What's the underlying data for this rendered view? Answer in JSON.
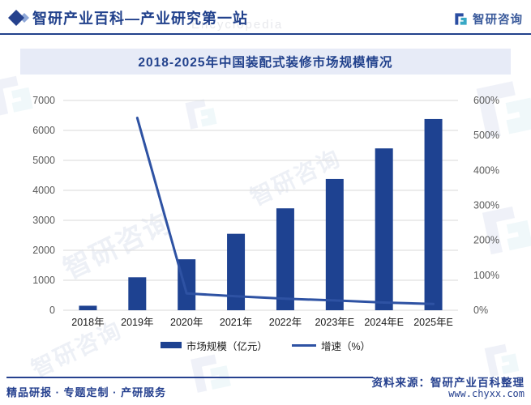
{
  "header": {
    "title": "智研产业百科—产业研究第一站",
    "logo_text": "智研咨询"
  },
  "chart_data": {
    "type": "bar",
    "title": "2018-2025年中国装配式装修市场规模情况",
    "categories": [
      "2018年",
      "2019年",
      "2020年",
      "2021年",
      "2022年",
      "2023年E",
      "2024年E",
      "2025年E"
    ],
    "series": [
      {
        "name": "市场规模（亿元）",
        "type": "bar",
        "axis": "left",
        "values": [
          150,
          1100,
          1700,
          2550,
          3400,
          4380,
          5400,
          6380
        ]
      },
      {
        "name": "增速（%）",
        "type": "line",
        "axis": "right",
        "values": [
          null,
          550,
          48,
          40,
          33,
          28,
          22,
          18
        ]
      }
    ],
    "left_axis": {
      "min": 0,
      "max": 7000,
      "step": 1000,
      "tick_labels": [
        "0",
        "1000",
        "2000",
        "3000",
        "4000",
        "5000",
        "6000",
        "7000"
      ]
    },
    "right_axis": {
      "min": 0,
      "max": 600,
      "step": 100,
      "tick_labels": [
        "0%",
        "100%",
        "200%",
        "300%",
        "400%",
        "500%",
        "600%"
      ]
    },
    "grid": true,
    "legend_position": "bottom",
    "colors": {
      "bar": "#1E4291",
      "line": "#2E52A3",
      "grid": "#DADADA",
      "tick": "#595959",
      "category": "#1a1a1a"
    }
  },
  "footer": {
    "tagline": "精品研报 · 专题定制 · 产研服务",
    "source": "资料来源：智研产业百科整理",
    "website": "www.chyxx.com"
  },
  "watermark": {
    "brand": "智研咨询",
    "english": "Encyclopedia"
  }
}
